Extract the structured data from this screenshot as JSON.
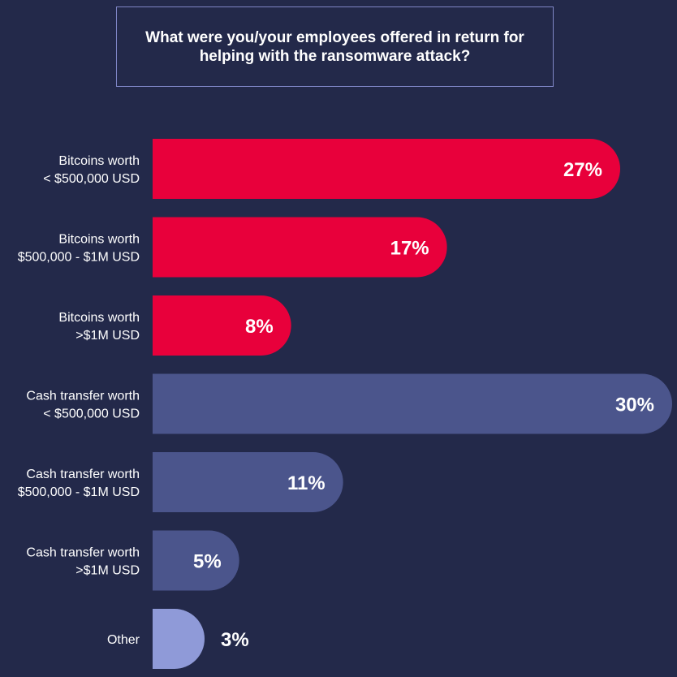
{
  "chart_data": {
    "type": "bar",
    "orientation": "horizontal",
    "title": "What were you/your employees offered in return for helping with the ransomware attack?",
    "categories": [
      [
        "Bitcoins worth",
        "< $500,000 USD"
      ],
      [
        "Bitcoins worth",
        "$500,000 - $1M USD"
      ],
      [
        "Bitcoins worth",
        ">$1M USD"
      ],
      [
        "Cash transfer worth",
        "< $500,000 USD"
      ],
      [
        "Cash transfer worth",
        "$500,000 - $1M USD"
      ],
      [
        "Cash transfer worth",
        ">$1M USD"
      ],
      [
        "Other"
      ]
    ],
    "values": [
      27,
      17,
      8,
      30,
      11,
      5,
      3
    ],
    "value_labels": [
      "27%",
      "17%",
      "8%",
      "30%",
      "11%",
      "5%",
      "3%"
    ],
    "groups": [
      "bitcoin",
      "bitcoin",
      "bitcoin",
      "cash",
      "cash",
      "cash",
      "other"
    ],
    "colors": {
      "bitcoin": "#e8003b",
      "cash": "#4b558c",
      "other": "#8f9ad8",
      "background": "#23294a",
      "title_border": "#7f86c6",
      "text": "#ffffff"
    },
    "xlim": [
      0,
      30
    ],
    "grid": false,
    "legend": "none"
  }
}
